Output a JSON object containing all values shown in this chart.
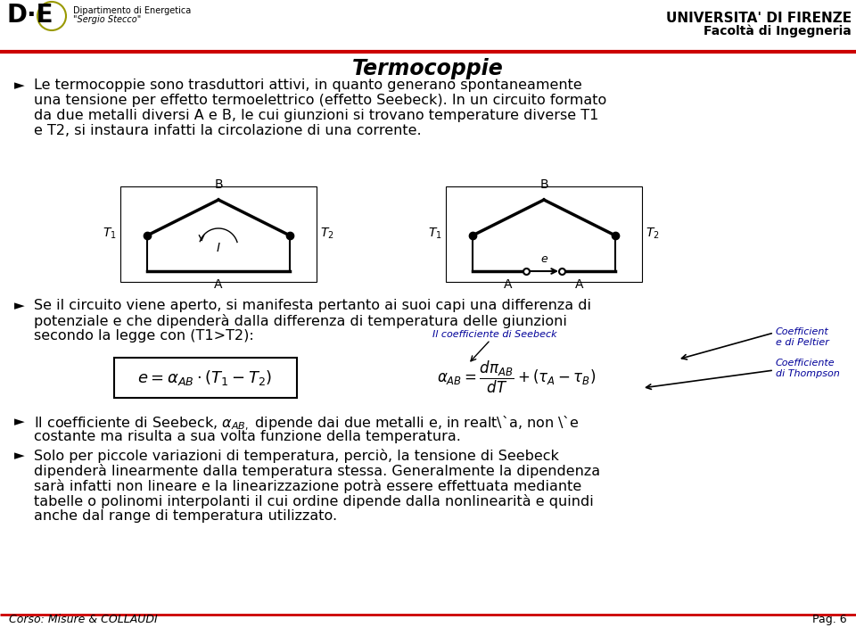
{
  "title": "Termocoppie",
  "university_name": "UNIVERSITA' DI FIRENZE",
  "university_faculty": "Facoltà di Ingegneria",
  "dept_name": "Dipartimento di Energetica",
  "dept_subtitle": "\"Sergio Stecco\"",
  "footer_left": "Corso: Misure & COLLAUDI",
  "footer_right": "Pag. 6",
  "red_line_color": "#cc0000",
  "bg_color": "#ffffff",
  "blue_annot_color": "#000099",
  "seebeck_label": "Il coefficiente di Seebeck",
  "peltier_label": "Coefficient\ne di Peltier",
  "thompson_label": "Coefficiente\ndi Thompson"
}
